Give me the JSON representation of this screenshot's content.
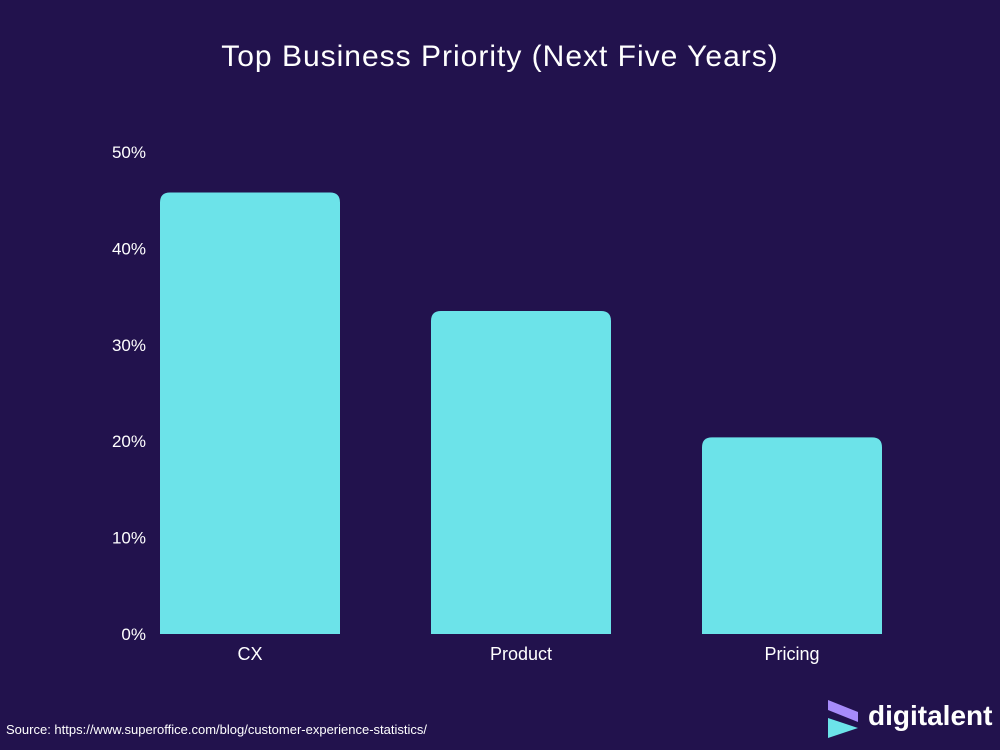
{
  "chart_data": {
    "type": "bar",
    "title": "Top Business Priority (Next Five Years)",
    "categories": [
      "CX",
      "Product",
      "Pricing"
    ],
    "values": [
      45.8,
      33.5,
      20.4
    ],
    "ylim": [
      0,
      50
    ],
    "yticks": [
      "0%",
      "10%",
      "20%",
      "30%",
      "40%",
      "50%"
    ],
    "ytick_values": [
      0,
      10,
      20,
      30,
      40,
      50
    ],
    "xlabel": "",
    "ylabel": "",
    "grid": false,
    "legend": "none",
    "bar_color": "#6ce3e9"
  },
  "background_color": "#22124d",
  "source": "Source: https://www.superoffice.com/blog/customer-experience-statistics/",
  "brand": {
    "name": "digitalent",
    "mark_colors": [
      "#a78bfa",
      "#6ce3e9"
    ]
  }
}
